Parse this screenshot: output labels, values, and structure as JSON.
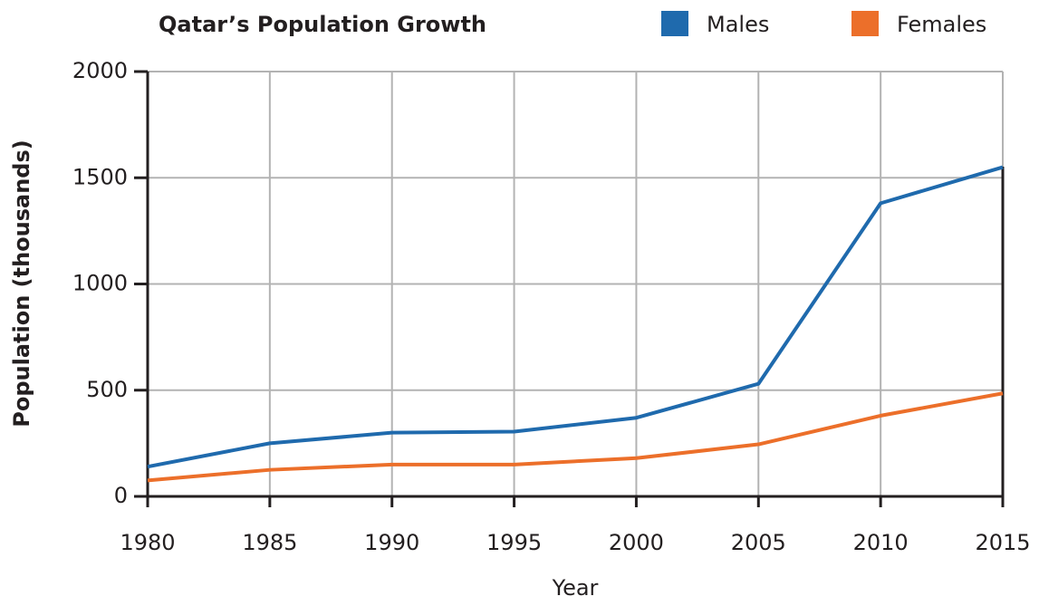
{
  "chart_data": {
    "type": "line",
    "title": "Qatar’s Population Growth",
    "x_label": "Year",
    "y_label": "Population (thousands)",
    "x": [
      1980,
      1985,
      1990,
      1995,
      2000,
      2005,
      2010,
      2015
    ],
    "series": [
      {
        "name": "Males",
        "color": "#1f6aad",
        "values": [
          140,
          250,
          300,
          305,
          370,
          530,
          1380,
          1550
        ]
      },
      {
        "name": "Females",
        "color": "#ec6f2a",
        "values": [
          75,
          125,
          150,
          150,
          180,
          245,
          380,
          485
        ]
      }
    ],
    "xlim": [
      1980,
      2015
    ],
    "xticks": [
      1980,
      1985,
      1990,
      1995,
      2000,
      2005,
      2010,
      2015
    ],
    "ylim": [
      0,
      2000
    ],
    "yticks": [
      0,
      500,
      1000,
      1500,
      2000
    ],
    "grid": true,
    "legend": "top"
  }
}
